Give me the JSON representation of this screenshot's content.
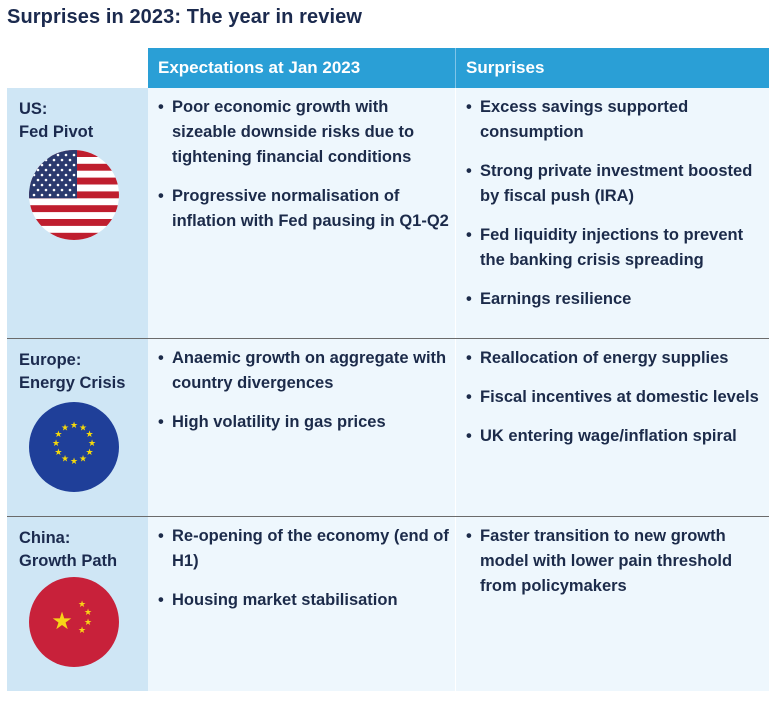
{
  "title": "Surprises in 2023: The year in review",
  "columns": {
    "expectations": "Expectations at Jan 2023",
    "surprises": "Surprises"
  },
  "rows": [
    {
      "region_line1": "US:",
      "region_line2": "Fed Pivot",
      "flag_icon": "us-flag-icon",
      "expectations": [
        "Poor economic growth with sizeable downside risks due to tightening financial conditions",
        "Progressive normalisation of inflation with Fed pausing in Q1-Q2"
      ],
      "surprises": [
        "Excess savings supported consumption",
        "Strong private investment boosted by fiscal push (IRA)",
        "Fed liquidity injections to prevent the banking crisis spreading",
        "Earnings resilience"
      ]
    },
    {
      "region_line1": "Europe:",
      "region_line2": "Energy Crisis",
      "flag_icon": "eu-flag-icon",
      "expectations": [
        "Anaemic growth on aggregate with country divergences",
        "High volatility in gas prices"
      ],
      "surprises": [
        "Reallocation of energy supplies",
        "Fiscal incentives at domestic levels",
        "UK entering wage/inflation spiral"
      ]
    },
    {
      "region_line1": "China:",
      "region_line2": "Growth Path",
      "flag_icon": "china-flag-icon",
      "expectations": [
        "Re-opening of the economy (end of H1)",
        "Housing market stabilisation"
      ],
      "surprises": [
        "Faster transition to new growth model with lower pain threshold from policymakers"
      ]
    }
  ],
  "colors": {
    "header_bg": "#2a9fd6",
    "region_bg": "#cfe6f5",
    "content_bg": "#eef7fd",
    "title_text": "#1b2a4e"
  }
}
